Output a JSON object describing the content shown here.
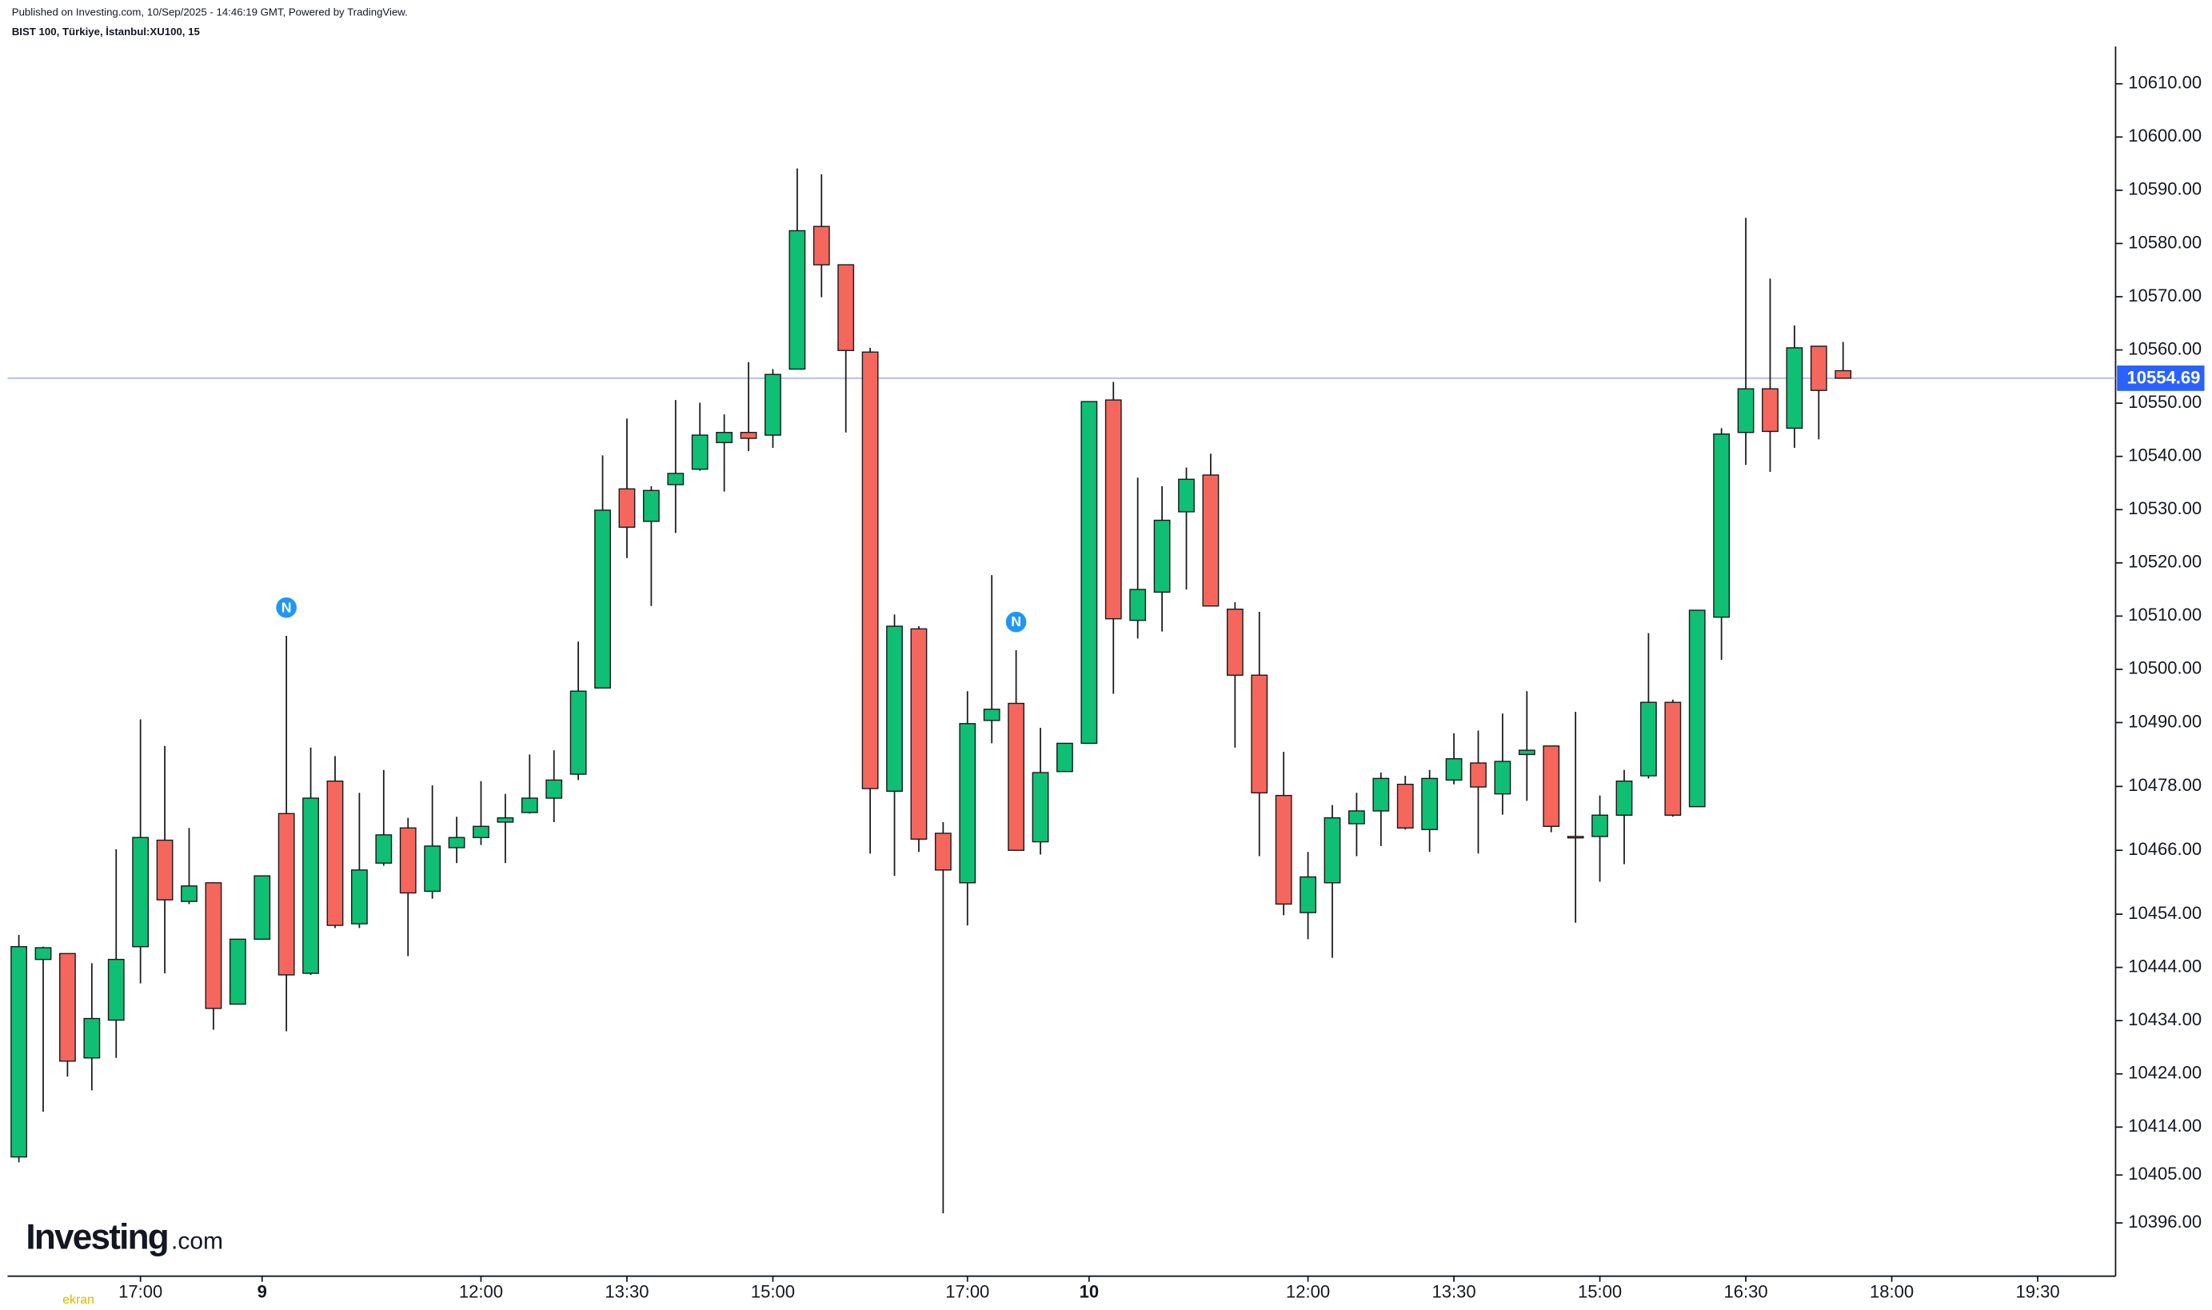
{
  "header": {
    "published": "Published on Investing.com, 10/Sep/2025 - 14:46:19 GMT, Powered by TradingView.",
    "symbol": "BIST 100, Türkiye, İstanbul:XU100, 15"
  },
  "logo": {
    "brand": "Investing",
    "suffix": ".com",
    "watermark": "ekran"
  },
  "chart_data": {
    "type": "candlestick",
    "categories": [
      null,
      null,
      null,
      null,
      null,
      "17:00",
      null,
      null,
      null,
      null,
      "9",
      null,
      null,
      null,
      null,
      null,
      null,
      null,
      null,
      "12:00",
      null,
      null,
      null,
      null,
      null,
      "13:30",
      null,
      null,
      null,
      null,
      null,
      "15:00",
      null,
      null,
      null,
      null,
      null,
      null,
      null,
      "17:00",
      null,
      null,
      null,
      null,
      "10",
      null,
      null,
      null,
      null,
      null,
      null,
      null,
      null,
      "12:00",
      null,
      null,
      null,
      null,
      null,
      "13:30",
      null,
      null,
      null,
      null,
      null,
      "15:00",
      null,
      null,
      null,
      null,
      null,
      "16:30",
      null,
      null,
      null,
      null,
      null,
      "18:00",
      null,
      null,
      null,
      null,
      null,
      "19:30"
    ],
    "open": [
      10408.4,
      10445.5,
      10446.6,
      10427.0,
      10434.1,
      10447.9,
      10467.9,
      10456.4,
      10459.9,
      10437.1,
      10449.3,
      10472.9,
      10442.9,
      10479.0,
      10452.2,
      10463.6,
      10470.2,
      10458.3,
      10466.5,
      10468.4,
      10471.3,
      10473.1,
      10475.8,
      10480.3,
      10496.5,
      10533.9,
      10527.8,
      10534.7,
      10537.6,
      10542.6,
      10544.5,
      10544.0,
      10556.4,
      10583.2,
      10576.0,
      10559.6,
      10477.1,
      10507.6,
      10469.2,
      10459.9,
      10490.4,
      10493.6,
      10467.6,
      10480.8,
      10486.1,
      10550.6,
      10509.2,
      10514.5,
      10529.6,
      10536.5,
      10511.3,
      10498.9,
      10476.3,
      10454.3,
      10459.9,
      10471.0,
      10473.4,
      10478.4,
      10469.9,
      10479.2,
      10482.4,
      10476.6,
      10484.0,
      10485.6,
      10468.6,
      10468.6,
      10472.6,
      10480.0,
      10493.8,
      10474.2,
      10509.8,
      10544.5,
      10552.7,
      10545.3,
      10560.7,
      10556.1,
      null,
      null,
      null,
      null,
      null,
      null,
      null,
      null
    ],
    "high": [
      10450.1,
      10447.9,
      10446.6,
      10444.8,
      10466.2,
      10490.6,
      10485.6,
      10470.2,
      10459.9,
      10449.3,
      10461.2,
      10506.3,
      10485.3,
      10483.7,
      10476.8,
      10481.1,
      10472.1,
      10478.2,
      10472.3,
      10479.0,
      10476.6,
      10484.0,
      10484.8,
      10505.2,
      10540.2,
      10547.1,
      10534.4,
      10550.6,
      10550.1,
      10547.9,
      10557.7,
      10556.4,
      10594.1,
      10593.0,
      10576.0,
      10560.4,
      10510.3,
      10508.1,
      10471.3,
      10495.9,
      10517.7,
      10503.6,
      10489.0,
      10486.1,
      10550.3,
      10554.0,
      10536.0,
      10534.4,
      10537.9,
      10540.5,
      10512.6,
      10510.8,
      10484.5,
      10465.7,
      10474.5,
      10476.8,
      10480.6,
      10480.0,
      10481.1,
      10488.0,
      10488.5,
      10491.7,
      10495.9,
      10485.6,
      10492.0,
      10476.3,
      10481.1,
      10506.8,
      10494.3,
      10511.1,
      10545.3,
      10584.8,
      10573.4,
      10564.6,
      10560.7,
      10561.5,
      null,
      null,
      null,
      null,
      null,
      null,
      null,
      null
    ],
    "low": [
      10407.4,
      10416.9,
      10423.5,
      10420.9,
      10427.0,
      10441.0,
      10442.9,
      10455.9,
      10432.3,
      10437.1,
      10449.3,
      10432.0,
      10442.6,
      10451.4,
      10451.4,
      10463.1,
      10446.1,
      10456.9,
      10463.6,
      10467.0,
      10463.6,
      10472.9,
      10471.3,
      10479.2,
      10496.5,
      10520.9,
      10511.9,
      10525.6,
      10537.3,
      10533.4,
      10541.0,
      10541.6,
      10556.4,
      10569.9,
      10544.5,
      10465.4,
      10461.2,
      10465.7,
      10397.8,
      10451.9,
      10486.1,
      10466.0,
      10465.2,
      10480.8,
      10486.1,
      10495.4,
      10505.8,
      10507.1,
      10515.0,
      10511.9,
      10485.3,
      10464.9,
      10453.8,
      10449.3,
      10445.8,
      10464.9,
      10466.8,
      10469.9,
      10465.7,
      10478.4,
      10465.4,
      10472.7,
      10475.3,
      10469.4,
      10452.4,
      10460.1,
      10463.4,
      10479.5,
      10472.3,
      10474.2,
      10501.8,
      10538.4,
      10537.1,
      10541.6,
      10543.2,
      10554.69,
      null,
      null,
      null,
      null,
      null,
      null,
      null,
      null
    ],
    "close": [
      10447.9,
      10447.7,
      10426.4,
      10434.4,
      10445.5,
      10468.4,
      10456.7,
      10459.3,
      10436.3,
      10449.3,
      10461.2,
      10442.6,
      10475.8,
      10451.9,
      10462.3,
      10468.9,
      10458.0,
      10466.8,
      10468.4,
      10470.5,
      10472.1,
      10475.8,
      10479.2,
      10495.9,
      10529.9,
      10526.7,
      10533.6,
      10536.8,
      10544.0,
      10544.5,
      10543.4,
      10555.4,
      10582.4,
      10576.0,
      10559.9,
      10477.6,
      10508.1,
      10468.1,
      10462.3,
      10489.8,
      10492.5,
      10466.0,
      10480.6,
      10486.1,
      10550.3,
      10509.5,
      10515.0,
      10528.0,
      10535.7,
      10511.9,
      10498.9,
      10476.8,
      10455.9,
      10461.0,
      10472.1,
      10473.4,
      10479.5,
      10470.2,
      10479.5,
      10483.2,
      10477.9,
      10482.7,
      10484.8,
      10470.5,
      10468.4,
      10472.6,
      10479.0,
      10493.8,
      10472.6,
      10511.1,
      10544.2,
      10552.7,
      10544.7,
      10560.4,
      10552.4,
      10554.69,
      null,
      null,
      null,
      null,
      null,
      null,
      null,
      null
    ],
    "up_color": "#0fbf73",
    "down_color": "#f5675d",
    "last_price": 10554.69,
    "last_price_color": "#2962ff",
    "event_markers": [
      {
        "label": "N",
        "index": 11
      },
      {
        "label": "N",
        "index": 41
      }
    ],
    "ylim": [
      10386,
      10617
    ],
    "yticks": [
      {
        "value": 10610,
        "label": "10610.00"
      },
      {
        "value": 10600,
        "label": "10600.00"
      },
      {
        "value": 10590,
        "label": "10590.00"
      },
      {
        "value": 10580,
        "label": "10580.00"
      },
      {
        "value": 10570,
        "label": "10570.00"
      },
      {
        "value": 10560,
        "label": "10560.00"
      },
      {
        "value": 10550,
        "label": "10550.00"
      },
      {
        "value": 10540,
        "label": "10540.00"
      },
      {
        "value": 10530,
        "label": "10530.00"
      },
      {
        "value": 10520,
        "label": "10520.00"
      },
      {
        "value": 10510,
        "label": "10510.00"
      },
      {
        "value": 10500,
        "label": "10500.00"
      },
      {
        "value": 10490,
        "label": "10490.00"
      },
      {
        "value": 10478,
        "label": "10478.00"
      },
      {
        "value": 10466,
        "label": "10466.00"
      },
      {
        "value": 10454,
        "label": "10454.00"
      },
      {
        "value": 10444,
        "label": "10444.00"
      },
      {
        "value": 10434,
        "label": "10434.00"
      },
      {
        "value": 10424,
        "label": "10424.00"
      },
      {
        "value": 10414,
        "label": "10414.00"
      },
      {
        "value": 10405,
        "label": "10405.00"
      },
      {
        "value": 10396,
        "label": "10396.00"
      }
    ]
  }
}
